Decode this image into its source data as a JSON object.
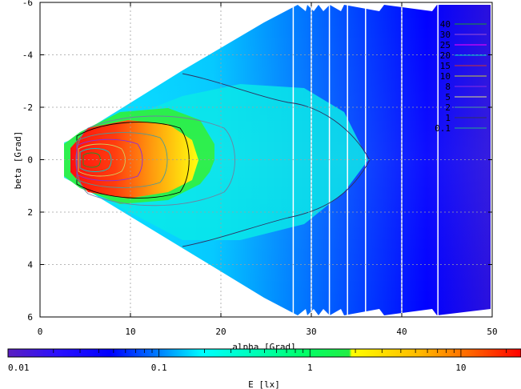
{
  "chart_data": {
    "type": "heatmap",
    "xlabel": "alpha [Grad]",
    "ylabel": "beta [Grad]",
    "xlim": [
      0,
      50
    ],
    "ylim": [
      -6,
      6
    ],
    "y_axis_inverted": true,
    "x_ticks": [
      0,
      10,
      20,
      30,
      40,
      50
    ],
    "y_ticks": [
      -6,
      -4,
      -2,
      0,
      2,
      4,
      6
    ],
    "grid": true,
    "colorbar": {
      "label": "E [lx]",
      "scale": "log",
      "range": [
        0.01,
        25
      ],
      "tick_labels": [
        {
          "value": 0.01,
          "label": "0.01"
        },
        {
          "value": 0.1,
          "label": "0.1"
        },
        {
          "value": 1,
          "label": "1"
        },
        {
          "value": 10,
          "label": "10"
        }
      ],
      "colors": [
        "#5a1fc0",
        "#0000ff",
        "#00ffff",
        "#00ff00",
        "#ffff00",
        "#ff8000",
        "#ff0000"
      ]
    },
    "legend_position": "top-right",
    "contours": [
      {
        "level": "40",
        "color": "#1a9a2a"
      },
      {
        "level": "30",
        "color": "#9b4fd6"
      },
      {
        "level": "25",
        "color": "#ff00ff"
      },
      {
        "level": "20",
        "color": "#00cccc"
      },
      {
        "level": "15",
        "color": "#cc3333"
      },
      {
        "level": "10",
        "color": "#c8c840"
      },
      {
        "level": "8",
        "color": "#8a2be2"
      },
      {
        "level": "5",
        "color": "#dddd88"
      },
      {
        "level": "2",
        "color": "#4d9999"
      },
      {
        "level": "1",
        "color": "#303060"
      },
      {
        "level": "0.1",
        "color": "#22aa88"
      }
    ],
    "strip_edges_x": [
      28,
      30,
      32,
      34,
      36,
      40,
      44,
      50
    ]
  }
}
